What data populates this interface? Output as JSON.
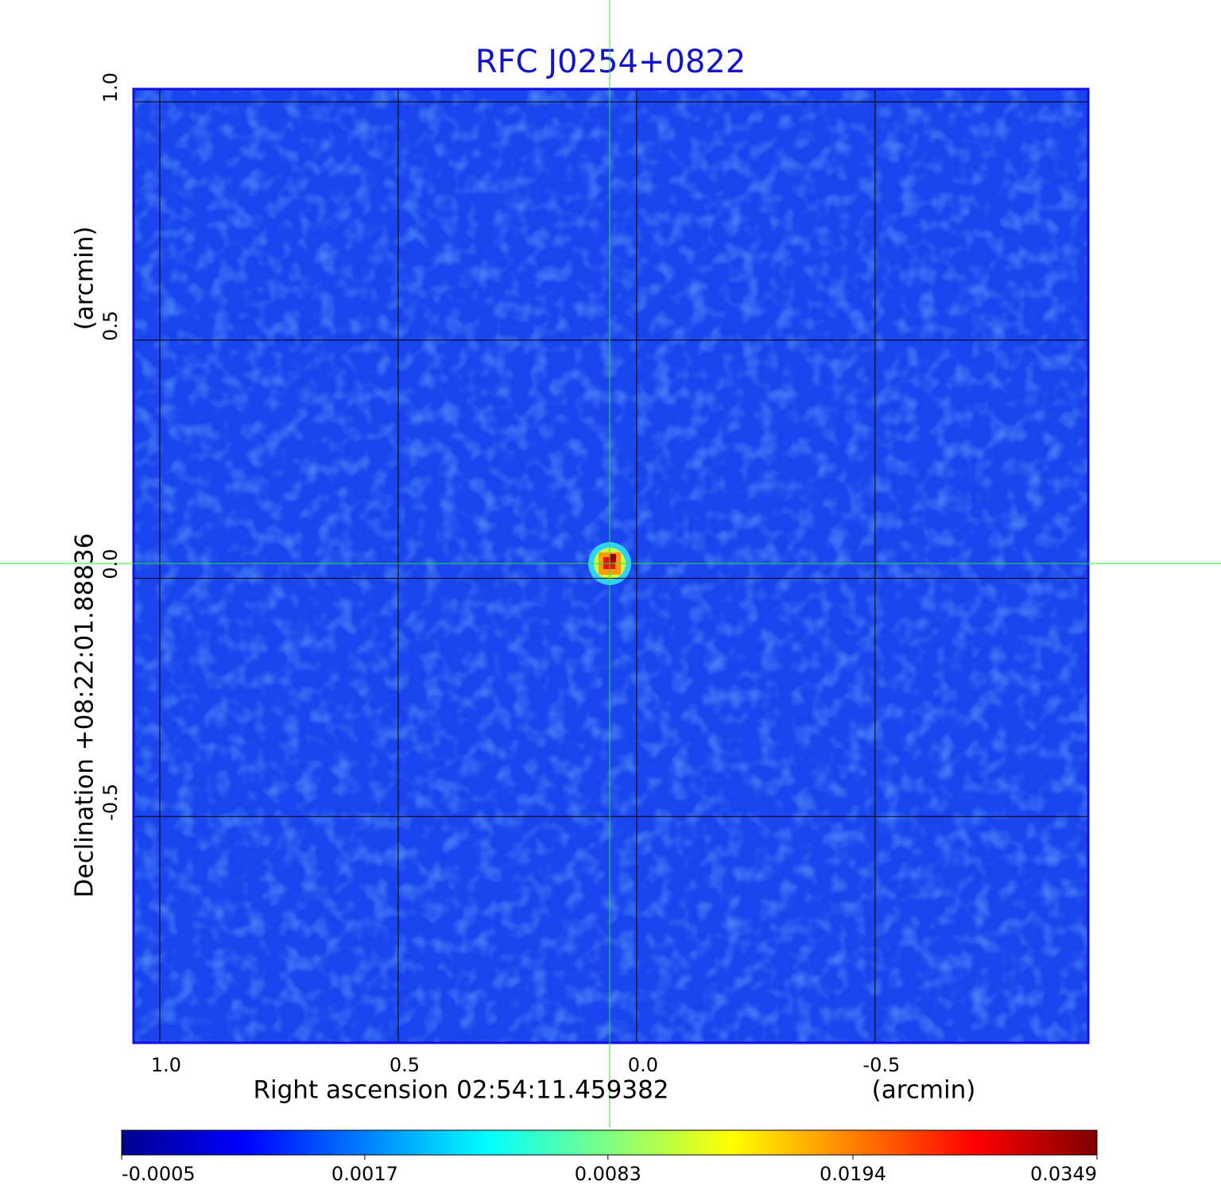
{
  "chart_data": {
    "type": "image",
    "title": "RFC J0254+0822",
    "x_label": "Right ascension  02:54:11.459382",
    "x_unit": "(arcmin)",
    "y_label": "Declination  +08:22:01.88836",
    "y_unit": "(arcmin)",
    "xlim": [
      1.055,
      -0.947
    ],
    "ylim": [
      -0.975,
      1.027
    ],
    "xticks": [
      {
        "value": 1.0,
        "label": "1.0"
      },
      0.5,
      {
        "value": 0.0,
        "label": "0.0"
      },
      -0.5
    ],
    "yticks": [
      -0.5,
      {
        "value": 0.0,
        "label": "0.0"
      },
      0.5,
      {
        "value": 1.0,
        "label": "1.0"
      }
    ],
    "grid": true,
    "colormap": "jet",
    "colorbar_scale": "sqrt",
    "colorbar_lim": [
      -0.0005,
      0.0349
    ],
    "colorbar_ticks": [
      -0.0005,
      0.0017,
      0.0083,
      0.0194,
      0.0349
    ]
  }
}
